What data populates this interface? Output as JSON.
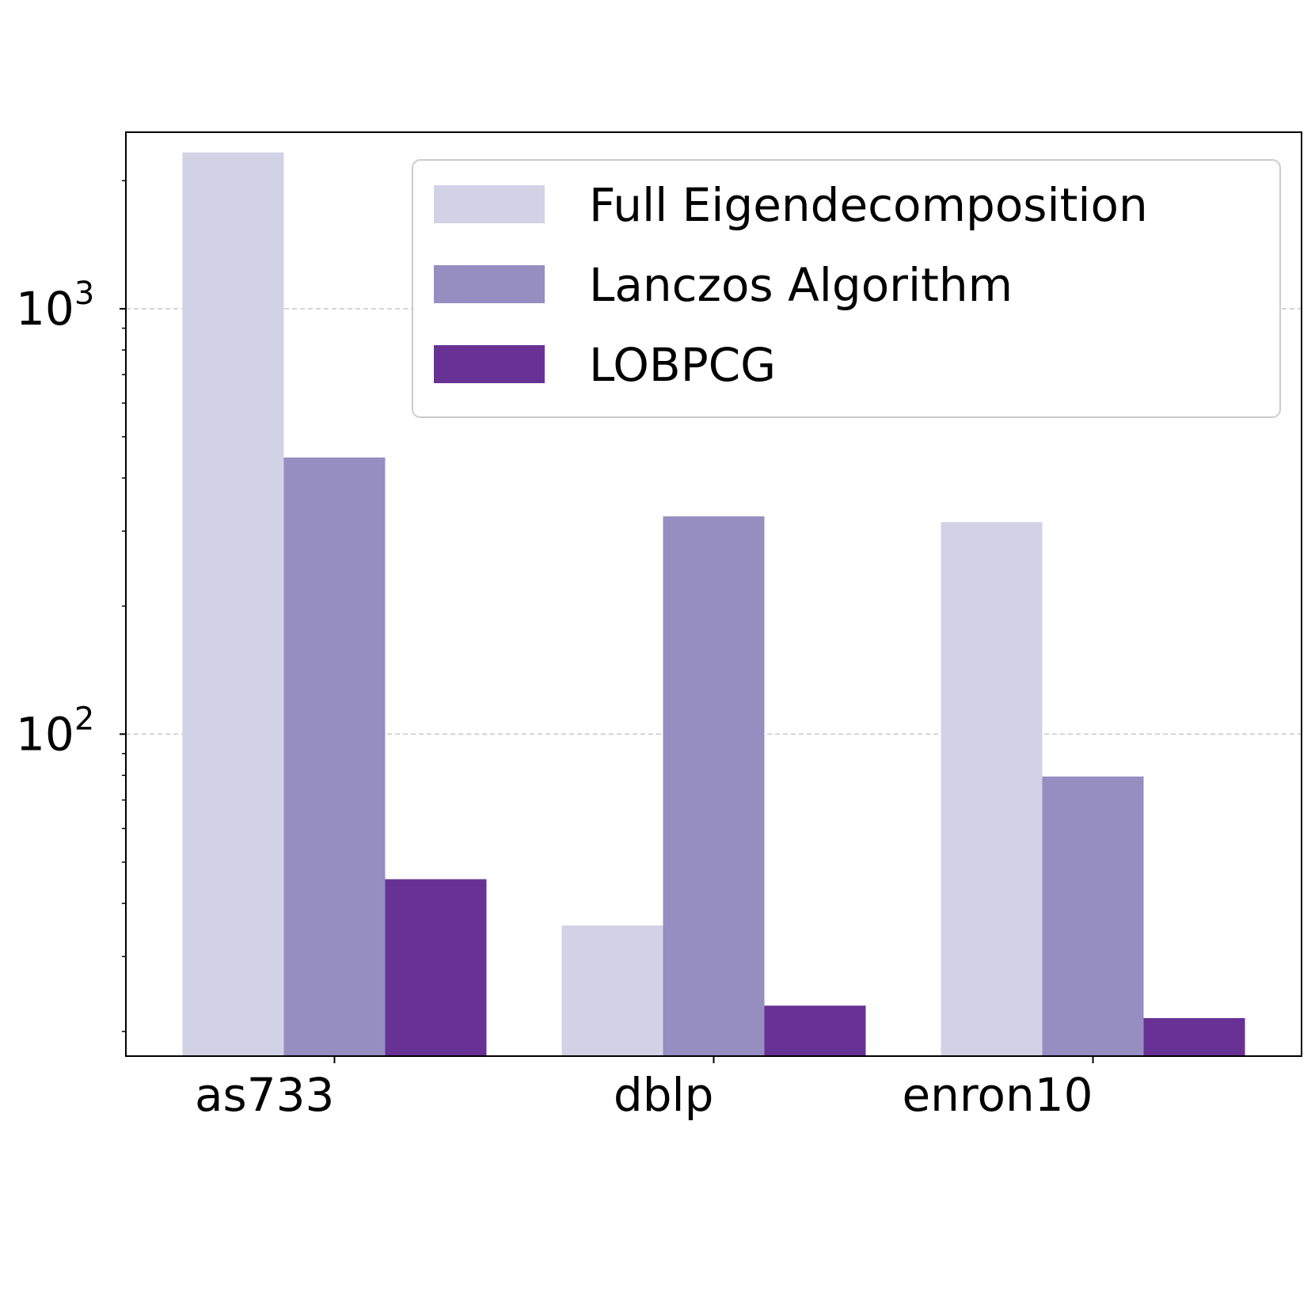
{
  "chart_data": {
    "type": "bar",
    "title": "",
    "xlabel": "",
    "ylabel": "",
    "yscale": "log",
    "ylim": [
      17.5,
      2600
    ],
    "grid": "y-major-dashed",
    "legend_position": "top-right",
    "categories": [
      "as733",
      "dblp",
      "enron10"
    ],
    "yticks": [
      {
        "value": 100,
        "base": "10",
        "exp": "2"
      },
      {
        "value": 1000,
        "base": "10",
        "exp": "3"
      }
    ],
    "series": [
      {
        "name": "Full Eigendecomposition",
        "color": "#d2d2e6",
        "values": [
          2330,
          35.5,
          315
        ]
      },
      {
        "name": "Lanczos Algorithm",
        "color": "#968dc1",
        "values": [
          447,
          325,
          79.5
        ]
      },
      {
        "name": "LOBPCG",
        "color": "#673294",
        "values": [
          45.6,
          23.0,
          21.5
        ]
      }
    ]
  }
}
